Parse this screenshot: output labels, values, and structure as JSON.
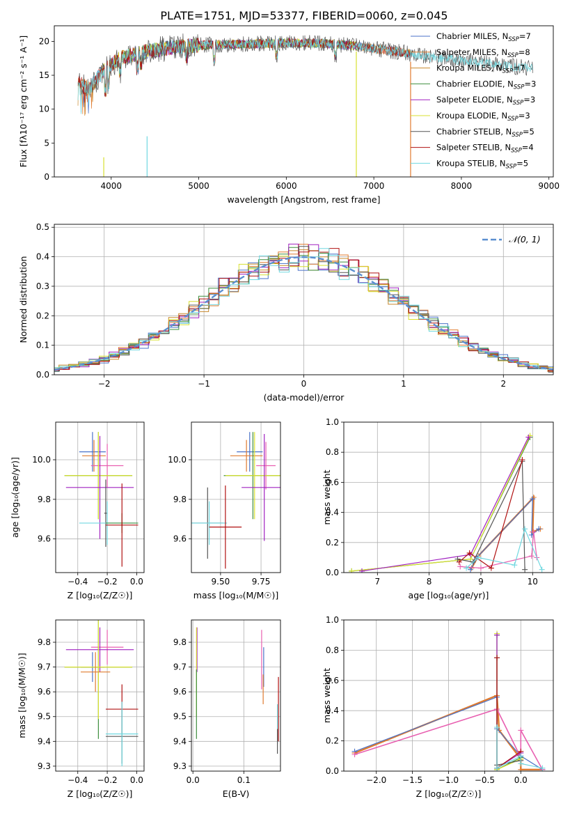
{
  "figure": {
    "title": "PLATE=1751, MJD=53377, FIBERID=0060, z=0.045"
  },
  "colors": {
    "chabrier_miles": "#4a72c8",
    "salpeter_miles": "#e07b2f",
    "kroupa_miles": "#c8882b",
    "chabrier_elodie": "#3e8e3e",
    "salpeter_elodie": "#a020c0",
    "kroupa_elodie": "#d8e030",
    "chabrier_stelib": "#555555",
    "salpeter_stelib": "#b01010",
    "kroupa_stelib": "#70d8e0",
    "gauss": "#5b8fd0",
    "pink": "#e85fb0"
  },
  "chart_data": [
    {
      "id": "spectrum",
      "type": "line",
      "xlabel": "wavelength [Angstrom, rest frame]",
      "ylabel": "Flux [fλ10⁻¹⁷ erg cm⁻² s⁻¹ A⁻¹]",
      "xlim": [
        3350,
        9050
      ],
      "ylim": [
        0,
        22.3
      ],
      "xticks": [
        4000,
        5000,
        6000,
        7000,
        8000,
        9000
      ],
      "yticks": [
        0,
        5,
        10,
        15,
        20
      ],
      "grid": false,
      "legend_position": "top-right",
      "series": [
        {
          "name": "Chabrier MILES, N_SSP=7",
          "label": "Chabrier MILES, N",
          "sub": "SSP",
          "suffix": "=7",
          "color": "#4a72c8",
          "xrange": [
            3620,
            7420
          ]
        },
        {
          "name": "Salpeter MILES, N_SSP=8",
          "label": "Salpeter MILES, N",
          "sub": "SSP",
          "suffix": "=8",
          "color": "#e07b2f",
          "xrange": [
            3620,
            7420
          ]
        },
        {
          "name": "Kroupa MILES, N_SSP=7",
          "label": "Kroupa MILES, N",
          "sub": "SSP",
          "suffix": "=7",
          "color": "#c8882b",
          "xrange": [
            3620,
            7420
          ]
        },
        {
          "name": "Chabrier ELODIE, N_SSP=3",
          "label": "Chabrier ELODIE, N",
          "sub": "SSP",
          "suffix": "=3",
          "color": "#3e8e3e",
          "xrange": [
            3900,
            6800
          ]
        },
        {
          "name": "Salpeter ELODIE, N_SSP=3",
          "label": "Salpeter ELODIE, N",
          "sub": "SSP",
          "suffix": "=3",
          "color": "#a020c0",
          "xrange": [
            3900,
            6800
          ]
        },
        {
          "name": "Kroupa ELODIE, N_SSP=3",
          "label": "Kroupa ELODIE, N",
          "sub": "SSP",
          "suffix": "=3",
          "color": "#d8e030",
          "xrange": [
            3900,
            6800
          ]
        },
        {
          "name": "Chabrier STELIB, N_SSP=5",
          "label": "Chabrier STELIB, N",
          "sub": "SSP",
          "suffix": "=5",
          "color": "#555555",
          "xrange": [
            3620,
            8820
          ]
        },
        {
          "name": "Salpeter STELIB, N_SSP=4",
          "label": "Salpeter STELIB, N",
          "sub": "SSP",
          "suffix": "=4",
          "color": "#b01010",
          "xrange": [
            3620,
            7420
          ]
        },
        {
          "name": "Kroupa STELIB, N_SSP=5",
          "label": "Kroupa STELIB, N",
          "sub": "SSP",
          "suffix": "=5",
          "color": "#70d8e0",
          "xrange": [
            3620,
            8820
          ]
        }
      ],
      "continuum": [
        [
          3620,
          14.0
        ],
        [
          3750,
          13.0
        ],
        [
          3900,
          15.5
        ],
        [
          4100,
          17.5
        ],
        [
          4400,
          18.5
        ],
        [
          4800,
          19.3
        ],
        [
          5200,
          19.5
        ],
        [
          5600,
          19.6
        ],
        [
          6000,
          19.8
        ],
        [
          6400,
          19.7
        ],
        [
          6800,
          19.3
        ],
        [
          7200,
          18.6
        ],
        [
          7600,
          17.8
        ],
        [
          8000,
          17.2
        ],
        [
          8400,
          16.6
        ],
        [
          8820,
          16.0
        ]
      ]
    },
    {
      "id": "residual_histogram",
      "type": "histogram",
      "xlabel": "(data-model)/error",
      "ylabel": "Normed distribution",
      "xlim": [
        -2.5,
        2.5
      ],
      "ylim": [
        0,
        0.51
      ],
      "xticks": [
        -2,
        -1,
        0,
        1,
        2
      ],
      "xticklabels": [
        "−2",
        "−1",
        "0",
        "1",
        "2"
      ],
      "yticks": [
        0.0,
        0.1,
        0.2,
        0.3,
        0.4,
        0.5
      ],
      "yticklabels": [
        "0.0",
        "0.1",
        "0.2",
        "0.3",
        "0.4",
        "0.5"
      ],
      "grid": true,
      "bin_width": 0.1,
      "legend": {
        "label": "𝒩(0, 1)",
        "position": "top-right"
      },
      "n_histograms": 9
    },
    {
      "id": "age_vs_Z",
      "type": "errorbar",
      "xlabel": "Z [log₁₀(Z/Z☉)]",
      "ylabel": "age  [log₁₀(age/yr)]",
      "xlim": [
        -0.55,
        0.05
      ],
      "ylim": [
        9.43,
        10.19
      ],
      "xticks": [
        -0.4,
        -0.2,
        0.0
      ],
      "xticklabels": [
        "−0.4",
        "−0.2",
        "0.0"
      ],
      "yticks": [
        9.6,
        9.8,
        10.0
      ],
      "yticklabels": [
        "9.6",
        "9.8",
        "10.0"
      ],
      "grid": true,
      "points": [
        {
          "color": "#4a72c8",
          "x": -0.3,
          "xerr": 0.09,
          "y": 10.04,
          "yerr": 0.1
        },
        {
          "color": "#e07b2f",
          "x": -0.29,
          "xerr": 0.08,
          "y": 10.02,
          "yerr": 0.08
        },
        {
          "color": "#e85fb0",
          "x": -0.2,
          "xerr": 0.11,
          "y": 9.97,
          "yerr": 0.11
        },
        {
          "color": "#3e8e3e",
          "x": -0.26,
          "xerr": 0.23,
          "y": 9.92,
          "yerr": 0.22
        },
        {
          "color": "#d8e030",
          "x": -0.26,
          "xerr": 0.23,
          "y": 9.92,
          "yerr": 0.22
        },
        {
          "color": "#a020c0",
          "x": -0.25,
          "xerr": 0.23,
          "y": 9.86,
          "yerr": 0.26
        },
        {
          "color": "#555555",
          "x": -0.21,
          "xerr": 0.01,
          "y": 9.73,
          "yerr": 0.17
        },
        {
          "color": "#70d8e0",
          "x": -0.2,
          "xerr": 0.19,
          "y": 9.68,
          "yerr": 0.11
        },
        {
          "color": "#3e8e3e",
          "x": -0.1,
          "xerr": 0.11,
          "y": 9.68,
          "yerr": 0.05
        },
        {
          "color": "#b01010",
          "x": -0.1,
          "xerr": 0.11,
          "y": 9.67,
          "yerr": 0.21
        }
      ]
    },
    {
      "id": "age_vs_mass",
      "type": "errorbar",
      "xlabel": "mass [log₁₀(M/M☉)]",
      "ylabel": "",
      "xlim": [
        9.32,
        9.87
      ],
      "ylim": [
        9.43,
        10.19
      ],
      "xticks": [
        9.5,
        9.75
      ],
      "xticklabels": [
        "9.50",
        "9.75"
      ],
      "yticks": [
        9.6,
        9.8,
        10.0
      ],
      "yticklabels": [
        "9.6",
        "9.8",
        "10.0"
      ],
      "grid": true,
      "points": [
        {
          "color": "#4a72c8",
          "x": 9.68,
          "xerr": 0.08,
          "y": 10.04,
          "yerr": 0.1
        },
        {
          "color": "#e07b2f",
          "x": 9.66,
          "xerr": 0.1,
          "y": 10.02,
          "yerr": 0.08
        },
        {
          "color": "#e85fb0",
          "x": 9.78,
          "xerr": 0.06,
          "y": 9.97,
          "yerr": 0.12
        },
        {
          "color": "#3e8e3e",
          "x": 9.7,
          "xerr": 0.18,
          "y": 9.92,
          "yerr": 0.22
        },
        {
          "color": "#d8e030",
          "x": 9.71,
          "xerr": 0.18,
          "y": 9.92,
          "yerr": 0.22
        },
        {
          "color": "#a020c0",
          "x": 9.77,
          "xerr": 0.14,
          "y": 9.86,
          "yerr": 0.27
        },
        {
          "color": "#555555",
          "x": 9.42,
          "xerr": 0.1,
          "y": 9.68,
          "yerr": 0.18
        },
        {
          "color": "#70d8e0",
          "x": 9.43,
          "xerr": 0.11,
          "y": 9.68,
          "yerr": 0.11
        },
        {
          "color": "#b01010",
          "x": 9.53,
          "xerr": 0.1,
          "y": 9.66,
          "yerr": 0.21
        }
      ]
    },
    {
      "id": "mass_weight_vs_age",
      "type": "line",
      "xlabel": "age  [log₁₀(age/yr)]",
      "ylabel": "mass weight",
      "xlim": [
        6.35,
        10.4
      ],
      "ylim": [
        0,
        1.0
      ],
      "xticks": [
        7,
        8,
        9,
        10
      ],
      "xticklabels": [
        "7",
        "8",
        "9",
        "10"
      ],
      "yticks": [
        0.0,
        0.2,
        0.4,
        0.6,
        0.8,
        1.0
      ],
      "yticklabels": [
        "0.0",
        "0.2",
        "0.4",
        "0.6",
        "0.8",
        "1.0"
      ],
      "grid": true,
      "series": [
        {
          "color": "#e07b2f",
          "x": [
            8.82,
            8.95,
            10.02,
            10.0,
            10.15
          ],
          "y": [
            0.03,
            0.11,
            0.5,
            0.27,
            0.29
          ],
          "width": 2.4
        },
        {
          "color": "#4a72c8",
          "x": [
            8.8,
            8.92,
            10.0,
            9.98,
            10.12
          ],
          "y": [
            0.02,
            0.1,
            0.49,
            0.25,
            0.29
          ],
          "width": 1.2
        },
        {
          "color": "#e85fb0",
          "x": [
            8.6,
            9.0,
            9.98,
            10.02,
            10.08
          ],
          "y": [
            0.04,
            0.03,
            0.11,
            0.27,
            0.1
          ],
          "width": 1.2
        },
        {
          "color": "#3e8e3e",
          "x": [
            6.5,
            8.8,
            9.95
          ],
          "y": [
            0.01,
            0.09,
            0.9
          ],
          "width": 1.2
        },
        {
          "color": "#d8e030",
          "x": [
            6.5,
            8.8,
            9.95
          ],
          "y": [
            0.01,
            0.09,
            0.91
          ],
          "width": 1.2
        },
        {
          "color": "#a020c0",
          "x": [
            6.7,
            8.8,
            9.92
          ],
          "y": [
            0.01,
            0.12,
            0.9
          ],
          "width": 1.2
        },
        {
          "color": "#555555",
          "x": [
            8.55,
            8.85,
            9.8,
            9.85
          ],
          "y": [
            0.09,
            0.07,
            0.74,
            0.02
          ],
          "width": 1.2
        },
        {
          "color": "#b01010",
          "x": [
            8.58,
            8.78,
            9.2,
            9.8
          ],
          "y": [
            0.07,
            0.13,
            0.03,
            0.75
          ],
          "width": 1.2
        },
        {
          "color": "#70d8e0",
          "x": [
            8.72,
            8.95,
            9.65,
            9.85,
            10.18
          ],
          "y": [
            0.03,
            0.1,
            0.05,
            0.29,
            0.02
          ],
          "width": 1.2
        }
      ]
    },
    {
      "id": "mass_vs_Z",
      "type": "errorbar",
      "xlabel": "Z [log₁₀(Z/Z☉)]",
      "ylabel": "mass [log₁₀(M/M☉)]",
      "xlim": [
        -0.55,
        0.05
      ],
      "ylim": [
        9.28,
        9.89
      ],
      "xticks": [
        -0.4,
        -0.2,
        0.0
      ],
      "xticklabels": [
        "−0.4",
        "−0.2",
        "0.0"
      ],
      "yticks": [
        9.3,
        9.4,
        9.5,
        9.6,
        9.7,
        9.8
      ],
      "yticklabels": [
        "9.3",
        "9.4",
        "9.5",
        "9.6",
        "9.7",
        "9.8"
      ],
      "grid": true,
      "points": [
        {
          "color": "#e85fb0",
          "x": -0.2,
          "xerr": 0.11,
          "y": 9.78,
          "yerr": 0.07
        },
        {
          "color": "#a020c0",
          "x": -0.25,
          "xerr": 0.23,
          "y": 9.77,
          "yerr": 0.09
        },
        {
          "color": "#4a72c8",
          "x": -0.3,
          "xerr": 0.08,
          "y": 9.7,
          "yerr": 0.06
        },
        {
          "color": "#3e8e3e",
          "x": -0.26,
          "xerr": 0.23,
          "y": 9.7,
          "yerr": 0.29
        },
        {
          "color": "#d8e030",
          "x": -0.26,
          "xerr": 0.23,
          "y": 9.7,
          "yerr": 0.21
        },
        {
          "color": "#e07b2f",
          "x": -0.28,
          "xerr": 0.1,
          "y": 9.68,
          "yerr": 0.08
        },
        {
          "color": "#b01010",
          "x": -0.1,
          "xerr": 0.11,
          "y": 9.53,
          "yerr": 0.1
        },
        {
          "color": "#555555",
          "x": -0.1,
          "xerr": 0.11,
          "y": 9.42,
          "yerr": 0.11
        },
        {
          "color": "#70d8e0",
          "x": -0.1,
          "xerr": 0.11,
          "y": 9.43,
          "yerr": 0.13
        }
      ]
    },
    {
      "id": "mass_vs_ebv",
      "type": "errorbar",
      "xlabel": "E(B-V)",
      "ylabel": "",
      "xlim": [
        -0.003,
        0.172
      ],
      "ylim": [
        9.28,
        9.89
      ],
      "xticks": [
        0.0,
        0.1
      ],
      "xticklabels": [
        "0.0",
        "0.1"
      ],
      "yticks": [
        9.3,
        9.4,
        9.5,
        9.6,
        9.7,
        9.8
      ],
      "yticklabels": [
        "9.3",
        "9.4",
        "9.5",
        "9.6",
        "9.7",
        "9.8"
      ],
      "grid": true,
      "points": [
        {
          "color": "#a020c0",
          "x": 0.008,
          "xerr": 0,
          "y": 9.77,
          "yerr": 0.09
        },
        {
          "color": "#d8e030",
          "x": 0.007,
          "xerr": 0,
          "y": 9.68,
          "yerr": 0.18
        },
        {
          "color": "#3e8e3e",
          "x": 0.007,
          "xerr": 0,
          "y": 9.55,
          "yerr": 0.14
        },
        {
          "color": "#e85fb0",
          "x": 0.135,
          "xerr": 0,
          "y": 9.73,
          "yerr": 0.12
        },
        {
          "color": "#4a72c8",
          "x": 0.139,
          "xerr": 0,
          "y": 9.7,
          "yerr": 0.08
        },
        {
          "color": "#e07b2f",
          "x": 0.138,
          "xerr": 0,
          "y": 9.61,
          "yerr": 0.06
        },
        {
          "color": "#b01010",
          "x": 0.168,
          "xerr": 0,
          "y": 9.53,
          "yerr": 0.13
        },
        {
          "color": "#70d8e0",
          "x": 0.166,
          "xerr": 0,
          "y": 9.47,
          "yerr": 0.08
        },
        {
          "color": "#555555",
          "x": 0.166,
          "xerr": 0,
          "y": 9.4,
          "yerr": 0.05
        }
      ]
    },
    {
      "id": "mass_weight_vs_Z",
      "type": "line",
      "xlabel": "Z [log₁₀(Z/Z☉)]",
      "ylabel": "mass weight",
      "xlim": [
        -2.45,
        0.45
      ],
      "ylim": [
        0,
        1.0
      ],
      "xticks": [
        -2.0,
        -1.5,
        -1.0,
        -0.5,
        0.0
      ],
      "xticklabels": [
        "−2.0",
        "−1.5",
        "−1.0",
        "−0.5",
        "0.0"
      ],
      "yticks": [
        0.0,
        0.2,
        0.4,
        0.6,
        0.8,
        1.0
      ],
      "yticklabels": [
        "0.0",
        "0.2",
        "0.4",
        "0.6",
        "0.8",
        "1.0"
      ],
      "grid": true,
      "series": [
        {
          "color": "#e07b2f",
          "x": [
            -2.3,
            -0.33,
            -0.3,
            0.0,
            0.0,
            0.3
          ],
          "y": [
            0.12,
            0.5,
            0.27,
            0.08,
            0.01,
            0.01
          ],
          "width": 2.4
        },
        {
          "color": "#4a72c8",
          "x": [
            -2.3,
            -0.33,
            -0.33,
            0.0,
            0.3
          ],
          "y": [
            0.13,
            0.49,
            0.28,
            0.1,
            0.01
          ],
          "width": 1.2
        },
        {
          "color": "#e85fb0",
          "x": [
            -2.3,
            -0.33,
            0.0,
            0.0,
            0.3
          ],
          "y": [
            0.11,
            0.41,
            0.09,
            0.27,
            0.01
          ],
          "width": 1.6
        },
        {
          "color": "#3e8e3e",
          "x": [
            -0.33,
            -0.33,
            0.0
          ],
          "y": [
            0.9,
            0.01,
            0.09
          ],
          "width": 1.2
        },
        {
          "color": "#d8e030",
          "x": [
            -0.33,
            -0.33,
            0.0
          ],
          "y": [
            0.91,
            0.01,
            0.08
          ],
          "width": 1.2
        },
        {
          "color": "#a020c0",
          "x": [
            -0.33,
            -0.33,
            0.0
          ],
          "y": [
            0.9,
            0.02,
            0.12
          ],
          "width": 1.2
        },
        {
          "color": "#555555",
          "x": [
            -0.33,
            -0.33,
            0.0
          ],
          "y": [
            0.75,
            0.04,
            0.07
          ],
          "width": 1.2
        },
        {
          "color": "#b01010",
          "x": [
            -0.33,
            -0.33,
            0.0
          ],
          "y": [
            0.75,
            0.02,
            0.13
          ],
          "width": 1.2
        },
        {
          "color": "#70d8e0",
          "x": [
            -0.33,
            -0.33,
            0.0,
            0.0,
            0.3
          ],
          "y": [
            0.29,
            0.02,
            0.1,
            0.05,
            0.02
          ],
          "width": 1.2
        }
      ]
    }
  ]
}
